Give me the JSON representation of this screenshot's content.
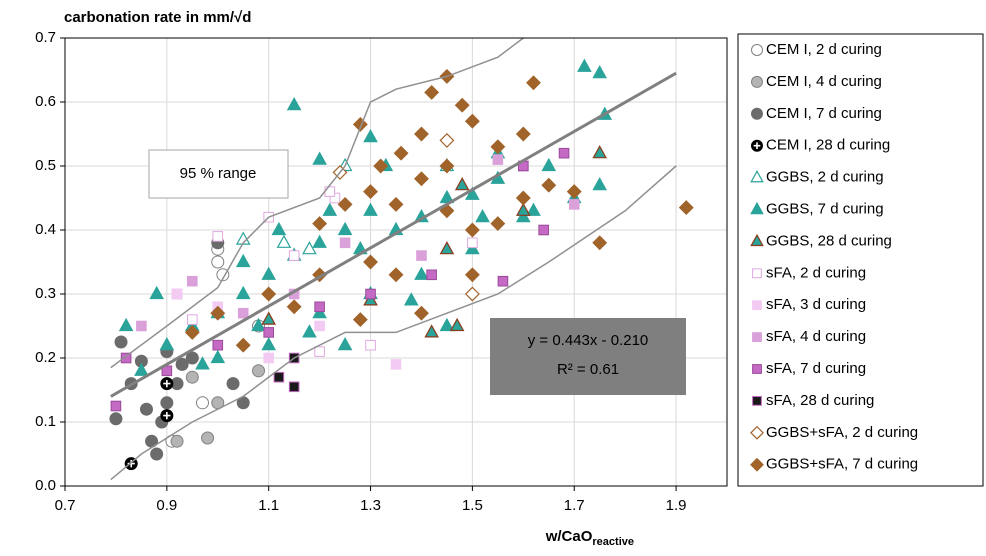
{
  "chart_data": {
    "type": "scatter",
    "title": "carbonation rate in mm/√d",
    "x_label": "w/CaO",
    "x_label_sub": "reactive",
    "xlim": [
      0.7,
      2.0
    ],
    "ylim": [
      0,
      0.7
    ],
    "xticks": [
      0.7,
      0.9,
      1.1,
      1.3,
      1.5,
      1.7,
      1.9
    ],
    "yticks": [
      {
        "value": 0,
        "label": "0.0"
      },
      0.1,
      0.2,
      0.3,
      0.4,
      0.5,
      0.6,
      0.7
    ],
    "grid": true,
    "legend": "right",
    "annotations": [
      "95 % range",
      "y = 0.443x - 0.210",
      "R² = 0.61"
    ],
    "trend_line": {
      "color": "#808080",
      "x": [
        0.79,
        1.9
      ],
      "values": [
        0.14,
        0.645
      ]
    },
    "range_lines": [
      {
        "color": "#909090",
        "x": [
          0.79,
          0.9,
          1.0,
          1.05,
          1.1,
          1.2,
          1.25,
          1.3,
          1.35,
          1.45,
          1.55,
          1.6
        ],
        "values": [
          0.185,
          0.25,
          0.31,
          0.38,
          0.42,
          0.45,
          0.5,
          0.6,
          0.62,
          0.64,
          0.67,
          0.7
        ]
      },
      {
        "color": "#909090",
        "x": [
          0.79,
          0.85,
          0.95,
          1.05,
          1.15,
          1.25,
          1.35,
          1.45,
          1.55,
          1.65,
          1.8,
          1.9
        ],
        "values": [
          0.01,
          0.05,
          0.1,
          0.14,
          0.2,
          0.24,
          0.24,
          0.27,
          0.3,
          0.35,
          0.43,
          0.5
        ]
      }
    ],
    "series": [
      {
        "name": "CEM I, 2 d curing",
        "marker": "circle",
        "color": "#ffffff",
        "edge": "#808080",
        "x": [
          1.0,
          1.0,
          1.01,
          0.91,
          0.97,
          1.08
        ],
        "values": [
          0.37,
          0.35,
          0.33,
          0.07,
          0.13,
          0.25
        ]
      },
      {
        "name": "CEM I, 4 d curing",
        "marker": "circle",
        "color": "#b4b4b4",
        "edge": "#808080",
        "x": [
          0.98,
          0.92,
          1.0,
          0.95,
          1.08
        ],
        "values": [
          0.075,
          0.07,
          0.13,
          0.17,
          0.18
        ]
      },
      {
        "name": "CEM I, 7 d curing",
        "marker": "circle",
        "color": "#6b6b6b",
        "edge": "#6b6b6b",
        "x": [
          0.8,
          0.81,
          0.83,
          0.86,
          0.87,
          0.88,
          0.89,
          0.9,
          0.9,
          0.92,
          0.93,
          0.95,
          1.0,
          1.03,
          1.05,
          0.85
        ],
        "values": [
          0.105,
          0.225,
          0.16,
          0.12,
          0.07,
          0.05,
          0.1,
          0.13,
          0.21,
          0.16,
          0.19,
          0.2,
          0.38,
          0.16,
          0.13,
          0.195
        ]
      },
      {
        "name": "CEM I, 28 d curing",
        "marker": "circle-plus",
        "color": "#000000",
        "edge": "#000000",
        "x": [
          0.83,
          0.9,
          0.9
        ],
        "values": [
          0.035,
          0.16,
          0.11
        ]
      },
      {
        "name": "GGBS, 2 d curing",
        "marker": "triangle",
        "color": "#ffffff",
        "edge": "#2aa39a",
        "x": [
          1.05,
          1.13,
          1.18,
          1.25,
          1.45
        ],
        "values": [
          0.385,
          0.38,
          0.37,
          0.5,
          0.5
        ]
      },
      {
        "name": "GGBS, 7 d curing",
        "marker": "triangle",
        "color": "#2aa39a",
        "edge": "#2aa39a",
        "x": [
          1.15,
          1.2,
          1.3,
          1.33,
          1.72,
          1.75,
          1.76,
          1.65,
          1.55,
          1.5,
          1.45,
          1.4,
          1.35,
          1.3,
          1.25,
          1.2,
          1.15,
          1.1,
          1.05,
          1.0,
          0.95,
          0.9,
          0.85,
          0.82,
          0.88,
          1.0,
          1.1,
          1.2,
          1.3,
          1.4,
          1.5,
          1.45,
          1.6,
          1.7,
          1.75,
          1.38,
          1.12,
          1.22,
          1.28,
          1.05,
          0.97,
          1.08,
          1.18,
          1.25,
          1.62,
          1.55,
          1.52
        ],
        "values": [
          0.595,
          0.51,
          0.545,
          0.5,
          0.655,
          0.645,
          0.58,
          0.5,
          0.48,
          0.455,
          0.45,
          0.42,
          0.4,
          0.43,
          0.4,
          0.38,
          0.36,
          0.33,
          0.3,
          0.27,
          0.25,
          0.22,
          0.18,
          0.25,
          0.3,
          0.2,
          0.22,
          0.27,
          0.3,
          0.33,
          0.37,
          0.25,
          0.42,
          0.45,
          0.47,
          0.29,
          0.4,
          0.43,
          0.37,
          0.35,
          0.19,
          0.25,
          0.24,
          0.22,
          0.43,
          0.52,
          0.42
        ]
      },
      {
        "name": "GGBS, 28 d curing",
        "marker": "triangle",
        "color": "#2aa39a",
        "edge": "#8b3a1a",
        "x": [
          1.75,
          1.6,
          1.47,
          1.45,
          1.3,
          1.42,
          1.1,
          1.48
        ],
        "values": [
          0.52,
          0.43,
          0.25,
          0.37,
          0.29,
          0.24,
          0.26,
          0.47
        ]
      },
      {
        "name": "sFA, 2 d curing",
        "marker": "square",
        "color": "#ffffff",
        "edge": "#e0a8e0",
        "x": [
          1.1,
          1.23,
          1.22,
          1.5,
          1.15,
          1.3,
          1.0,
          1.2,
          0.92,
          0.95
        ],
        "values": [
          0.42,
          0.45,
          0.46,
          0.38,
          0.36,
          0.22,
          0.39,
          0.21,
          0.3,
          0.26
        ]
      },
      {
        "name": "sFA, 3 d curing",
        "marker": "square",
        "color": "#f2caf2",
        "edge": "#f2caf2",
        "x": [
          0.92,
          1.0,
          1.1,
          1.2,
          1.35
        ],
        "values": [
          0.3,
          0.28,
          0.2,
          0.25,
          0.19
        ]
      },
      {
        "name": "sFA, 4 d curing",
        "marker": "square",
        "color": "#d9a0d9",
        "edge": "#d9a0d9",
        "x": [
          0.85,
          0.95,
          1.05,
          1.15,
          1.25,
          1.4,
          1.55,
          1.6,
          1.7
        ],
        "values": [
          0.25,
          0.32,
          0.27,
          0.3,
          0.38,
          0.36,
          0.51,
          0.5,
          0.44
        ]
      },
      {
        "name": "sFA, 7 d curing",
        "marker": "square",
        "color": "#c46ac4",
        "edge": "#9a4a9a",
        "x": [
          0.8,
          0.82,
          0.9,
          1.0,
          1.1,
          1.2,
          1.3,
          1.42,
          1.56,
          1.64,
          1.68,
          1.6
        ],
        "values": [
          0.125,
          0.2,
          0.18,
          0.22,
          0.24,
          0.28,
          0.3,
          0.33,
          0.32,
          0.4,
          0.52,
          0.5
        ]
      },
      {
        "name": "sFA, 28 d curing",
        "marker": "square",
        "color": "#1a1a1a",
        "edge": "#c46ac4",
        "x": [
          1.15,
          1.15,
          1.12
        ],
        "values": [
          0.2,
          0.155,
          0.17
        ]
      },
      {
        "name": "GGBS+sFA, 2 d curing",
        "marker": "diamond",
        "color": "#ffffff",
        "edge": "#a0632a",
        "x": [
          1.45,
          1.5,
          1.24
        ],
        "values": [
          0.54,
          0.3,
          0.49
        ]
      },
      {
        "name": "GGBS+sFA, 7 d curing",
        "marker": "diamond",
        "color": "#a0632a",
        "edge": "#a0632a",
        "x": [
          1.45,
          1.62,
          1.42,
          1.48,
          1.28,
          1.4,
          1.5,
          1.6,
          1.55,
          1.36,
          1.32,
          1.4,
          1.45,
          1.3,
          1.35,
          1.25,
          1.2,
          1.45,
          1.5,
          1.55,
          1.6,
          1.7,
          1.75,
          1.92,
          1.5,
          1.3,
          1.2,
          1.1,
          1.0,
          0.95,
          1.35,
          1.4,
          1.65,
          1.05,
          1.15,
          1.28
        ],
        "values": [
          0.64,
          0.63,
          0.615,
          0.595,
          0.565,
          0.55,
          0.57,
          0.55,
          0.53,
          0.52,
          0.5,
          0.48,
          0.5,
          0.46,
          0.44,
          0.44,
          0.41,
          0.43,
          0.4,
          0.41,
          0.45,
          0.46,
          0.38,
          0.435,
          0.33,
          0.35,
          0.33,
          0.3,
          0.27,
          0.24,
          0.33,
          0.27,
          0.47,
          0.22,
          0.28,
          0.26
        ]
      }
    ]
  }
}
